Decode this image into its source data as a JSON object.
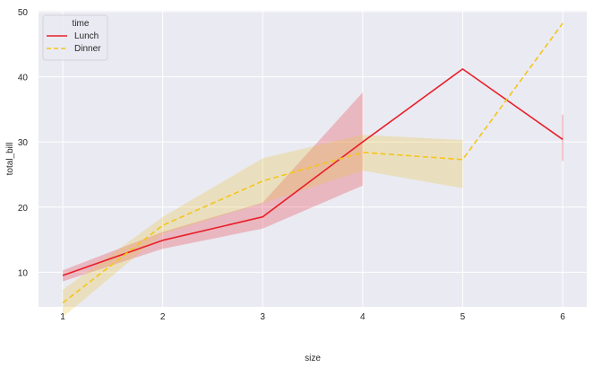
{
  "chart_data": {
    "type": "line",
    "title": "",
    "xlabel": "size",
    "ylabel": "total_bill",
    "x": [
      1,
      2,
      3,
      4,
      5,
      6
    ],
    "xticks": [
      "1",
      "2",
      "3",
      "4",
      "5",
      "6"
    ],
    "yticks": [
      "10",
      "20",
      "30",
      "40",
      "50"
    ],
    "ylim": [
      1,
      51
    ],
    "xlim": [
      0.75,
      6.25
    ],
    "grid": true,
    "legend": {
      "title": "time",
      "position": "upper left",
      "entries": [
        "Lunch",
        "Dinner"
      ]
    },
    "series": [
      {
        "name": "Lunch",
        "color": "#e8202a",
        "style": "solid",
        "values": [
          9.5,
          14.9,
          18.5,
          30.0,
          41.2,
          30.4
        ],
        "ci_low": [
          8.6,
          13.6,
          16.7,
          23.3,
          null,
          27.1
        ],
        "ci_high": [
          10.3,
          16.2,
          20.7,
          37.6,
          null,
          34.2
        ]
      },
      {
        "name": "Dinner",
        "color": "#f5c518",
        "style": "dashed",
        "values": [
          5.3,
          17.2,
          24.0,
          28.4,
          27.3,
          48.2
        ],
        "ci_low": [
          3.1,
          15.9,
          20.6,
          25.6,
          22.9,
          null
        ],
        "ci_high": [
          7.3,
          18.5,
          27.5,
          31.1,
          30.3,
          null
        ]
      }
    ]
  },
  "colors": {
    "plot_background": "#eaeaf2",
    "grid": "#ffffff",
    "lunch": "#e8202a",
    "dinner": "#f5c518",
    "lunch_band": "#e8202a",
    "dinner_band": "#e8c84a"
  }
}
